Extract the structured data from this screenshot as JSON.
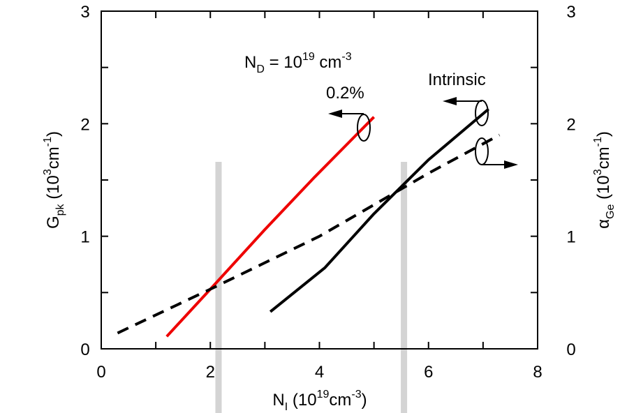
{
  "chart_data": {
    "type": "line",
    "x_axis": {
      "label": "N",
      "label_sub": "I",
      "label_rest": " (10",
      "label_sup": "19",
      "label_unit": "cm",
      "label_unit_sup": "-3",
      "label_close": ")",
      "range": [
        0,
        8
      ],
      "ticks": [
        0,
        2,
        4,
        6,
        8
      ]
    },
    "y_axis_left": {
      "label": "G",
      "label_sub": "pk",
      "label_rest": " (10",
      "label_sup": "3",
      "label_unit": "cm",
      "label_unit_sup": "-1",
      "label_close": ")",
      "range": [
        0,
        3
      ],
      "ticks": [
        0,
        1,
        2,
        3
      ]
    },
    "y_axis_right": {
      "label": "α",
      "label_sub": "Ge",
      "label_rest": " (10",
      "label_sup": "3",
      "label_unit": "cm",
      "label_unit_sup": "-1",
      "label_close": ")",
      "range": [
        0,
        3
      ],
      "ticks": [
        0,
        1,
        2,
        3
      ]
    },
    "series": [
      {
        "name": "0.2%",
        "color": "#ee0000",
        "style": "solid",
        "axis": "left",
        "x": [
          1.2,
          2.0,
          3.0,
          3.9,
          5.0
        ],
        "y": [
          0.11,
          0.53,
          1.06,
          1.52,
          2.06
        ]
      },
      {
        "name": "Intrinsic",
        "color": "#000000",
        "style": "solid",
        "axis": "left",
        "x": [
          3.1,
          4.1,
          5.0,
          6.0,
          7.1
        ],
        "y": [
          0.33,
          0.72,
          1.2,
          1.68,
          2.13
        ]
      },
      {
        "name": "",
        "color": "#000000",
        "style": "dashed",
        "axis": "right",
        "x": [
          0.3,
          2.0,
          4.0,
          6.0,
          7.3
        ],
        "y": [
          0.14,
          0.53,
          1.0,
          1.56,
          1.9
        ]
      }
    ],
    "vertical_markers": [
      2.15,
      5.55
    ],
    "annotations": {
      "nd_main": "N",
      "nd_sub": "D",
      "nd_eq": " = 10",
      "nd_sup": "19",
      "nd_unit": " cm",
      "nd_unit_sup": "-3",
      "red_label": "0.2%",
      "black_label": "Intrinsic"
    },
    "grid": false
  }
}
